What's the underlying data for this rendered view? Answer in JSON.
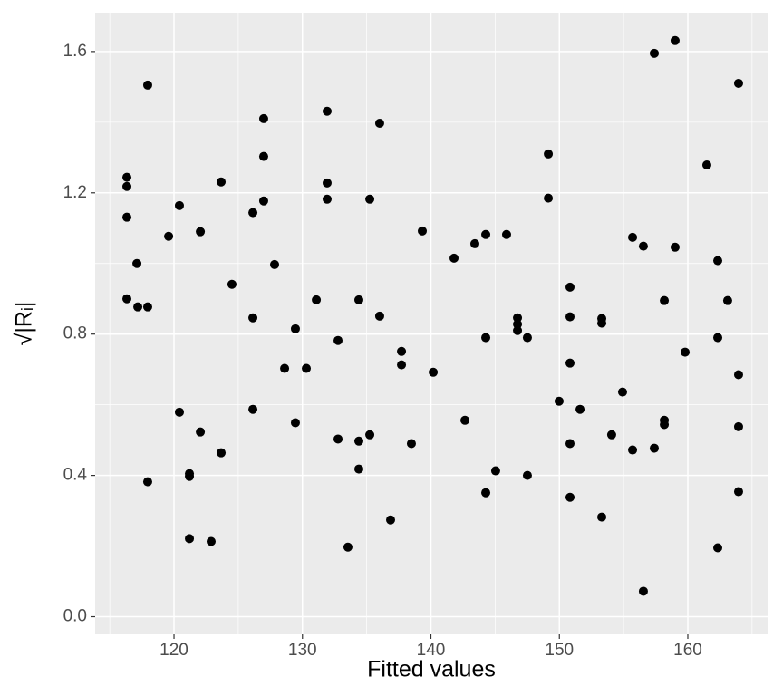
{
  "chart_data": {
    "type": "scatter",
    "x_label": "Fitted values",
    "y_label": "√|Rᵢ|",
    "x": [
      117.95,
      116.33,
      116.33,
      116.33,
      117.11,
      116.33,
      117.18,
      117.95,
      117.95,
      119.58,
      120.42,
      120.42,
      121.2,
      121.2,
      121.2,
      122.05,
      122.05,
      122.89,
      123.67,
      123.67,
      124.51,
      126.14,
      126.14,
      126.14,
      126.98,
      126.98,
      126.98,
      127.83,
      128.61,
      129.45,
      129.45,
      130.3,
      131.08,
      131.92,
      131.92,
      131.92,
      132.77,
      132.77,
      133.54,
      134.39,
      134.39,
      134.39,
      135.24,
      135.24,
      136.01,
      136.01,
      136.86,
      137.71,
      137.71,
      138.48,
      139.33,
      140.18,
      141.8,
      142.65,
      143.42,
      144.27,
      144.27,
      144.27,
      145.04,
      145.89,
      146.74,
      146.74,
      146.74,
      147.51,
      147.51,
      149.14,
      149.14,
      149.98,
      150.83,
      150.83,
      150.83,
      150.83,
      150.83,
      151.61,
      153.3,
      153.3,
      153.3,
      154.07,
      154.92,
      155.7,
      155.7,
      156.54,
      156.54,
      157.39,
      157.39,
      158.17,
      158.17,
      158.17,
      159.01,
      159.01,
      159.79,
      161.48,
      162.33,
      162.33,
      162.33,
      163.1,
      163.95,
      163.95,
      163.95,
      163.95
    ],
    "values": [
      1.505,
      1.244,
      1.218,
      1.131,
      1.0,
      0.9,
      0.877,
      0.877,
      0.382,
      1.077,
      1.164,
      0.579,
      0.405,
      0.397,
      0.221,
      1.09,
      0.523,
      0.213,
      1.231,
      0.464,
      0.941,
      1.144,
      0.846,
      0.587,
      1.41,
      1.303,
      1.177,
      0.997,
      0.703,
      0.815,
      0.549,
      0.703,
      0.897,
      1.431,
      1.228,
      1.182,
      0.782,
      0.503,
      0.197,
      0.897,
      0.497,
      0.418,
      1.182,
      0.515,
      1.397,
      0.851,
      0.274,
      0.751,
      0.713,
      0.49,
      1.092,
      0.692,
      1.015,
      0.556,
      1.056,
      1.082,
      0.79,
      0.351,
      0.413,
      1.082,
      0.846,
      0.828,
      0.81,
      0.79,
      0.4,
      1.31,
      1.185,
      0.61,
      0.933,
      0.849,
      0.718,
      0.49,
      0.338,
      0.587,
      0.844,
      0.831,
      0.282,
      0.515,
      0.636,
      1.074,
      0.472,
      1.049,
      0.072,
      1.595,
      0.477,
      0.895,
      0.556,
      0.544,
      1.631,
      1.046,
      0.749,
      1.279,
      1.008,
      0.79,
      0.195,
      0.895,
      1.51,
      0.685,
      0.538,
      0.354
    ],
    "color": "#000000",
    "xlim": [
      113.86,
      166.28
    ],
    "ylim": [
      -0.05,
      1.71
    ],
    "xticks": [
      120,
      130,
      140,
      150,
      160
    ],
    "yticks": [
      {
        "value": 0,
        "label": "0.0"
      },
      {
        "value": 0.4,
        "label": "0.4"
      },
      {
        "value": 0.8,
        "label": "0.8"
      },
      {
        "value": 1.2,
        "label": "1.2"
      },
      {
        "value": 1.6,
        "label": "1.6"
      }
    ],
    "grid": true
  }
}
